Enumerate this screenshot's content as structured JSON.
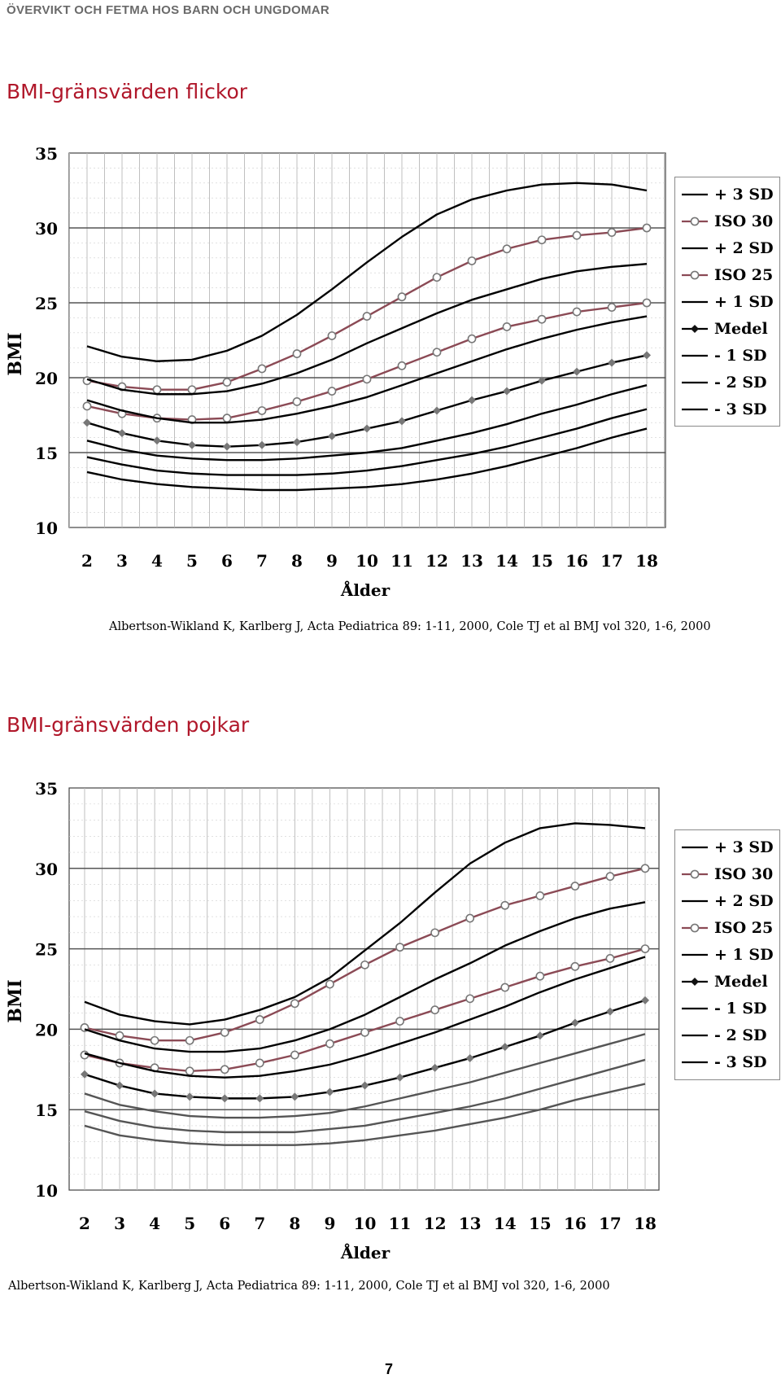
{
  "header": {
    "text": "ÖVERVIKT OCH FETMA HOS BARN OCH UNGDOMAR"
  },
  "page_number": "7",
  "colors": {
    "title": "#b0172a",
    "sd_line": "#000000",
    "iso_line": "#8b4a55",
    "marker": "#777777"
  },
  "legend": [
    {
      "label": "+ 3 SD",
      "style": "line"
    },
    {
      "label": "ISO 30",
      "style": "circle"
    },
    {
      "label": "+ 2 SD",
      "style": "line"
    },
    {
      "label": "ISO 25",
      "style": "circle"
    },
    {
      "label": "+ 1 SD",
      "style": "line"
    },
    {
      "label": "Medel",
      "style": "diamond"
    },
    {
      "label": "- 1 SD",
      "style": "line"
    },
    {
      "label": "- 2 SD",
      "style": "line"
    },
    {
      "label": "- 3 SD",
      "style": "line"
    }
  ],
  "chart_data": [
    {
      "type": "line",
      "title": "BMI-gränsvärden flickor",
      "xlabel": "Ålder",
      "ylabel": "BMI",
      "x": [
        2,
        3,
        4,
        5,
        6,
        7,
        8,
        9,
        10,
        11,
        12,
        13,
        14,
        15,
        16,
        17,
        18
      ],
      "ylim": [
        10,
        35
      ],
      "yticks": [
        10,
        15,
        20,
        25,
        30,
        35
      ],
      "grid": true,
      "legend_position": "right",
      "source": "Albertson-Wikland K, Karlberg J, Acta Pediatrica 89: 1-11, 2000,  Cole TJ et al BMJ vol 320, 1-6, 2000",
      "series": [
        {
          "name": "+ 3 SD",
          "marker": "none",
          "values": [
            22.1,
            21.4,
            21.1,
            21.2,
            21.8,
            22.8,
            24.2,
            25.9,
            27.7,
            29.4,
            30.9,
            31.9,
            32.5,
            32.9,
            33.0,
            32.9,
            32.5
          ]
        },
        {
          "name": "ISO 30",
          "marker": "circle",
          "values": [
            19.8,
            19.4,
            19.2,
            19.2,
            19.7,
            20.6,
            21.6,
            22.8,
            24.1,
            25.4,
            26.7,
            27.8,
            28.6,
            29.2,
            29.5,
            29.7,
            30.0
          ]
        },
        {
          "name": "+ 2 SD",
          "marker": "none",
          "values": [
            19.9,
            19.2,
            18.9,
            18.9,
            19.1,
            19.6,
            20.3,
            21.2,
            22.3,
            23.3,
            24.3,
            25.2,
            25.9,
            26.6,
            27.1,
            27.4,
            27.6
          ]
        },
        {
          "name": "ISO 25",
          "marker": "circle",
          "values": [
            18.1,
            17.6,
            17.3,
            17.2,
            17.3,
            17.8,
            18.4,
            19.1,
            19.9,
            20.8,
            21.7,
            22.6,
            23.4,
            23.9,
            24.4,
            24.7,
            25.0
          ]
        },
        {
          "name": "+ 1 SD",
          "marker": "none",
          "values": [
            18.5,
            17.8,
            17.3,
            17.0,
            17.0,
            17.2,
            17.6,
            18.1,
            18.7,
            19.5,
            20.3,
            21.1,
            21.9,
            22.6,
            23.2,
            23.7,
            24.1
          ]
        },
        {
          "name": "Medel",
          "marker": "diamond",
          "values": [
            17.0,
            16.3,
            15.8,
            15.5,
            15.4,
            15.5,
            15.7,
            16.1,
            16.6,
            17.1,
            17.8,
            18.5,
            19.1,
            19.8,
            20.4,
            21.0,
            21.5
          ]
        },
        {
          "name": "- 1 SD",
          "marker": "none",
          "values": [
            15.8,
            15.2,
            14.8,
            14.6,
            14.5,
            14.5,
            14.6,
            14.8,
            15.0,
            15.3,
            15.8,
            16.3,
            16.9,
            17.6,
            18.2,
            18.9,
            19.5
          ]
        },
        {
          "name": "- 2 SD",
          "marker": "none",
          "values": [
            14.7,
            14.2,
            13.8,
            13.6,
            13.5,
            13.5,
            13.5,
            13.6,
            13.8,
            14.1,
            14.5,
            14.9,
            15.4,
            16.0,
            16.6,
            17.3,
            17.9
          ]
        },
        {
          "name": "- 3 SD",
          "marker": "none",
          "values": [
            13.7,
            13.2,
            12.9,
            12.7,
            12.6,
            12.5,
            12.5,
            12.6,
            12.7,
            12.9,
            13.2,
            13.6,
            14.1,
            14.7,
            15.3,
            16.0,
            16.6
          ]
        }
      ]
    },
    {
      "type": "line",
      "title": "BMI-gränsvärden pojkar",
      "xlabel": "Ålder",
      "ylabel": "BMI",
      "x": [
        2,
        3,
        4,
        5,
        6,
        7,
        8,
        9,
        10,
        11,
        12,
        13,
        14,
        15,
        16,
        17,
        18
      ],
      "ylim": [
        10,
        35
      ],
      "yticks": [
        10,
        15,
        20,
        25,
        30,
        35
      ],
      "grid": true,
      "legend_position": "right",
      "source": "Albertson-Wikland K, Karlberg J, Acta Pediatrica 89: 1-11, 2000,  Cole TJ et al BMJ vol 320, 1-6, 2000",
      "series": [
        {
          "name": "+ 3 SD",
          "marker": "none",
          "values": [
            21.7,
            20.9,
            20.5,
            20.3,
            20.6,
            21.2,
            22.0,
            23.2,
            24.9,
            26.6,
            28.5,
            30.3,
            31.6,
            32.5,
            32.8,
            32.7,
            32.5
          ]
        },
        {
          "name": "ISO 30",
          "marker": "circle",
          "values": [
            20.1,
            19.6,
            19.3,
            19.3,
            19.8,
            20.6,
            21.6,
            22.8,
            24.0,
            25.1,
            26.0,
            26.9,
            27.7,
            28.3,
            28.9,
            29.5,
            30.0
          ]
        },
        {
          "name": "+ 2 SD",
          "marker": "none",
          "values": [
            20.0,
            19.3,
            18.8,
            18.6,
            18.6,
            18.8,
            19.3,
            20.0,
            20.9,
            22.0,
            23.1,
            24.1,
            25.2,
            26.1,
            26.9,
            27.5,
            27.9
          ]
        },
        {
          "name": "ISO 25",
          "marker": "circle",
          "values": [
            18.4,
            17.9,
            17.6,
            17.4,
            17.5,
            17.9,
            18.4,
            19.1,
            19.8,
            20.5,
            21.2,
            21.9,
            22.6,
            23.3,
            23.9,
            24.4,
            25.0
          ]
        },
        {
          "name": "+ 1 SD",
          "marker": "none",
          "values": [
            18.5,
            17.9,
            17.4,
            17.1,
            17.0,
            17.1,
            17.4,
            17.8,
            18.4,
            19.1,
            19.8,
            20.6,
            21.4,
            22.3,
            23.1,
            23.8,
            24.5
          ]
        },
        {
          "name": "Medel",
          "marker": "diamond",
          "values": [
            17.2,
            16.5,
            16.0,
            15.8,
            15.7,
            15.7,
            15.8,
            16.1,
            16.5,
            17.0,
            17.6,
            18.2,
            18.9,
            19.6,
            20.4,
            21.1,
            21.8
          ]
        },
        {
          "name": "- 1 SD",
          "marker": "none",
          "values": [
            16.0,
            15.3,
            14.9,
            14.6,
            14.5,
            14.5,
            14.6,
            14.8,
            15.2,
            15.7,
            16.2,
            16.7,
            17.3,
            17.9,
            18.5,
            19.1,
            19.7
          ]
        },
        {
          "name": "- 2 SD",
          "marker": "none",
          "values": [
            14.9,
            14.3,
            13.9,
            13.7,
            13.6,
            13.6,
            13.6,
            13.8,
            14.0,
            14.4,
            14.8,
            15.2,
            15.7,
            16.3,
            16.9,
            17.5,
            18.1
          ]
        },
        {
          "name": "- 3 SD",
          "marker": "none",
          "values": [
            14.0,
            13.4,
            13.1,
            12.9,
            12.8,
            12.8,
            12.8,
            12.9,
            13.1,
            13.4,
            13.7,
            14.1,
            14.5,
            15.0,
            15.6,
            16.1,
            16.6
          ]
        }
      ]
    }
  ]
}
